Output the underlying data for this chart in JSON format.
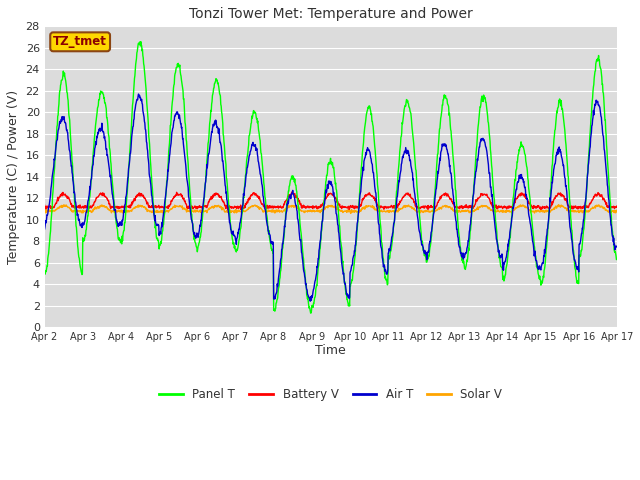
{
  "title": "Tonzi Tower Met: Temperature and Power",
  "xlabel": "Time",
  "ylabel": "Temperature (C) / Power (V)",
  "ylim": [
    0,
    28
  ],
  "fig_bg_color": "#ffffff",
  "plot_bg_color": "#dcdcdc",
  "grid_color": "#ffffff",
  "tz_label": "TZ_tmet",
  "tz_label_color": "#8B0000",
  "tz_box_facecolor": "#FFD700",
  "tz_box_edgecolor": "#8B4513",
  "legend_entries": [
    "Panel T",
    "Battery V",
    "Air T",
    "Solar V"
  ],
  "line_colors": [
    "#00FF00",
    "#FF0000",
    "#0000CD",
    "#FFA500"
  ],
  "n_days": 15,
  "spd": 96,
  "panel_day_peaks": [
    23.5,
    22.0,
    26.5,
    24.5,
    23.0,
    20.0,
    14.0,
    15.5,
    20.5,
    21.0,
    21.5,
    21.5,
    17.0,
    21.0,
    25.0
  ],
  "panel_night_troughs": [
    5.0,
    8.0,
    8.0,
    7.5,
    7.5,
    7.0,
    1.5,
    2.0,
    4.0,
    6.5,
    6.0,
    5.5,
    4.5,
    4.0,
    6.5
  ],
  "air_day_peaks": [
    19.5,
    18.5,
    21.5,
    20.0,
    19.0,
    17.0,
    12.5,
    13.5,
    16.5,
    16.5,
    17.0,
    17.5,
    14.0,
    16.5,
    21.0
  ],
  "air_night_troughs": [
    9.5,
    9.5,
    9.5,
    8.5,
    8.5,
    8.0,
    2.5,
    3.0,
    5.0,
    7.0,
    6.5,
    6.5,
    5.5,
    5.5,
    7.5
  ],
  "battery_base": 11.2,
  "battery_amp": 1.2,
  "solar_base": 10.8,
  "solar_amp": 0.5,
  "tick_labels": [
    "Apr 2",
    "Apr 3",
    "Apr 4",
    "Apr 5",
    "Apr 6",
    "Apr 7",
    "Apr 8",
    "Apr 9",
    "Apr 10",
    "Apr 11",
    "Apr 12",
    "Apr 13",
    "Apr 14",
    "Apr 15",
    "Apr 16",
    "Apr 17"
  ]
}
